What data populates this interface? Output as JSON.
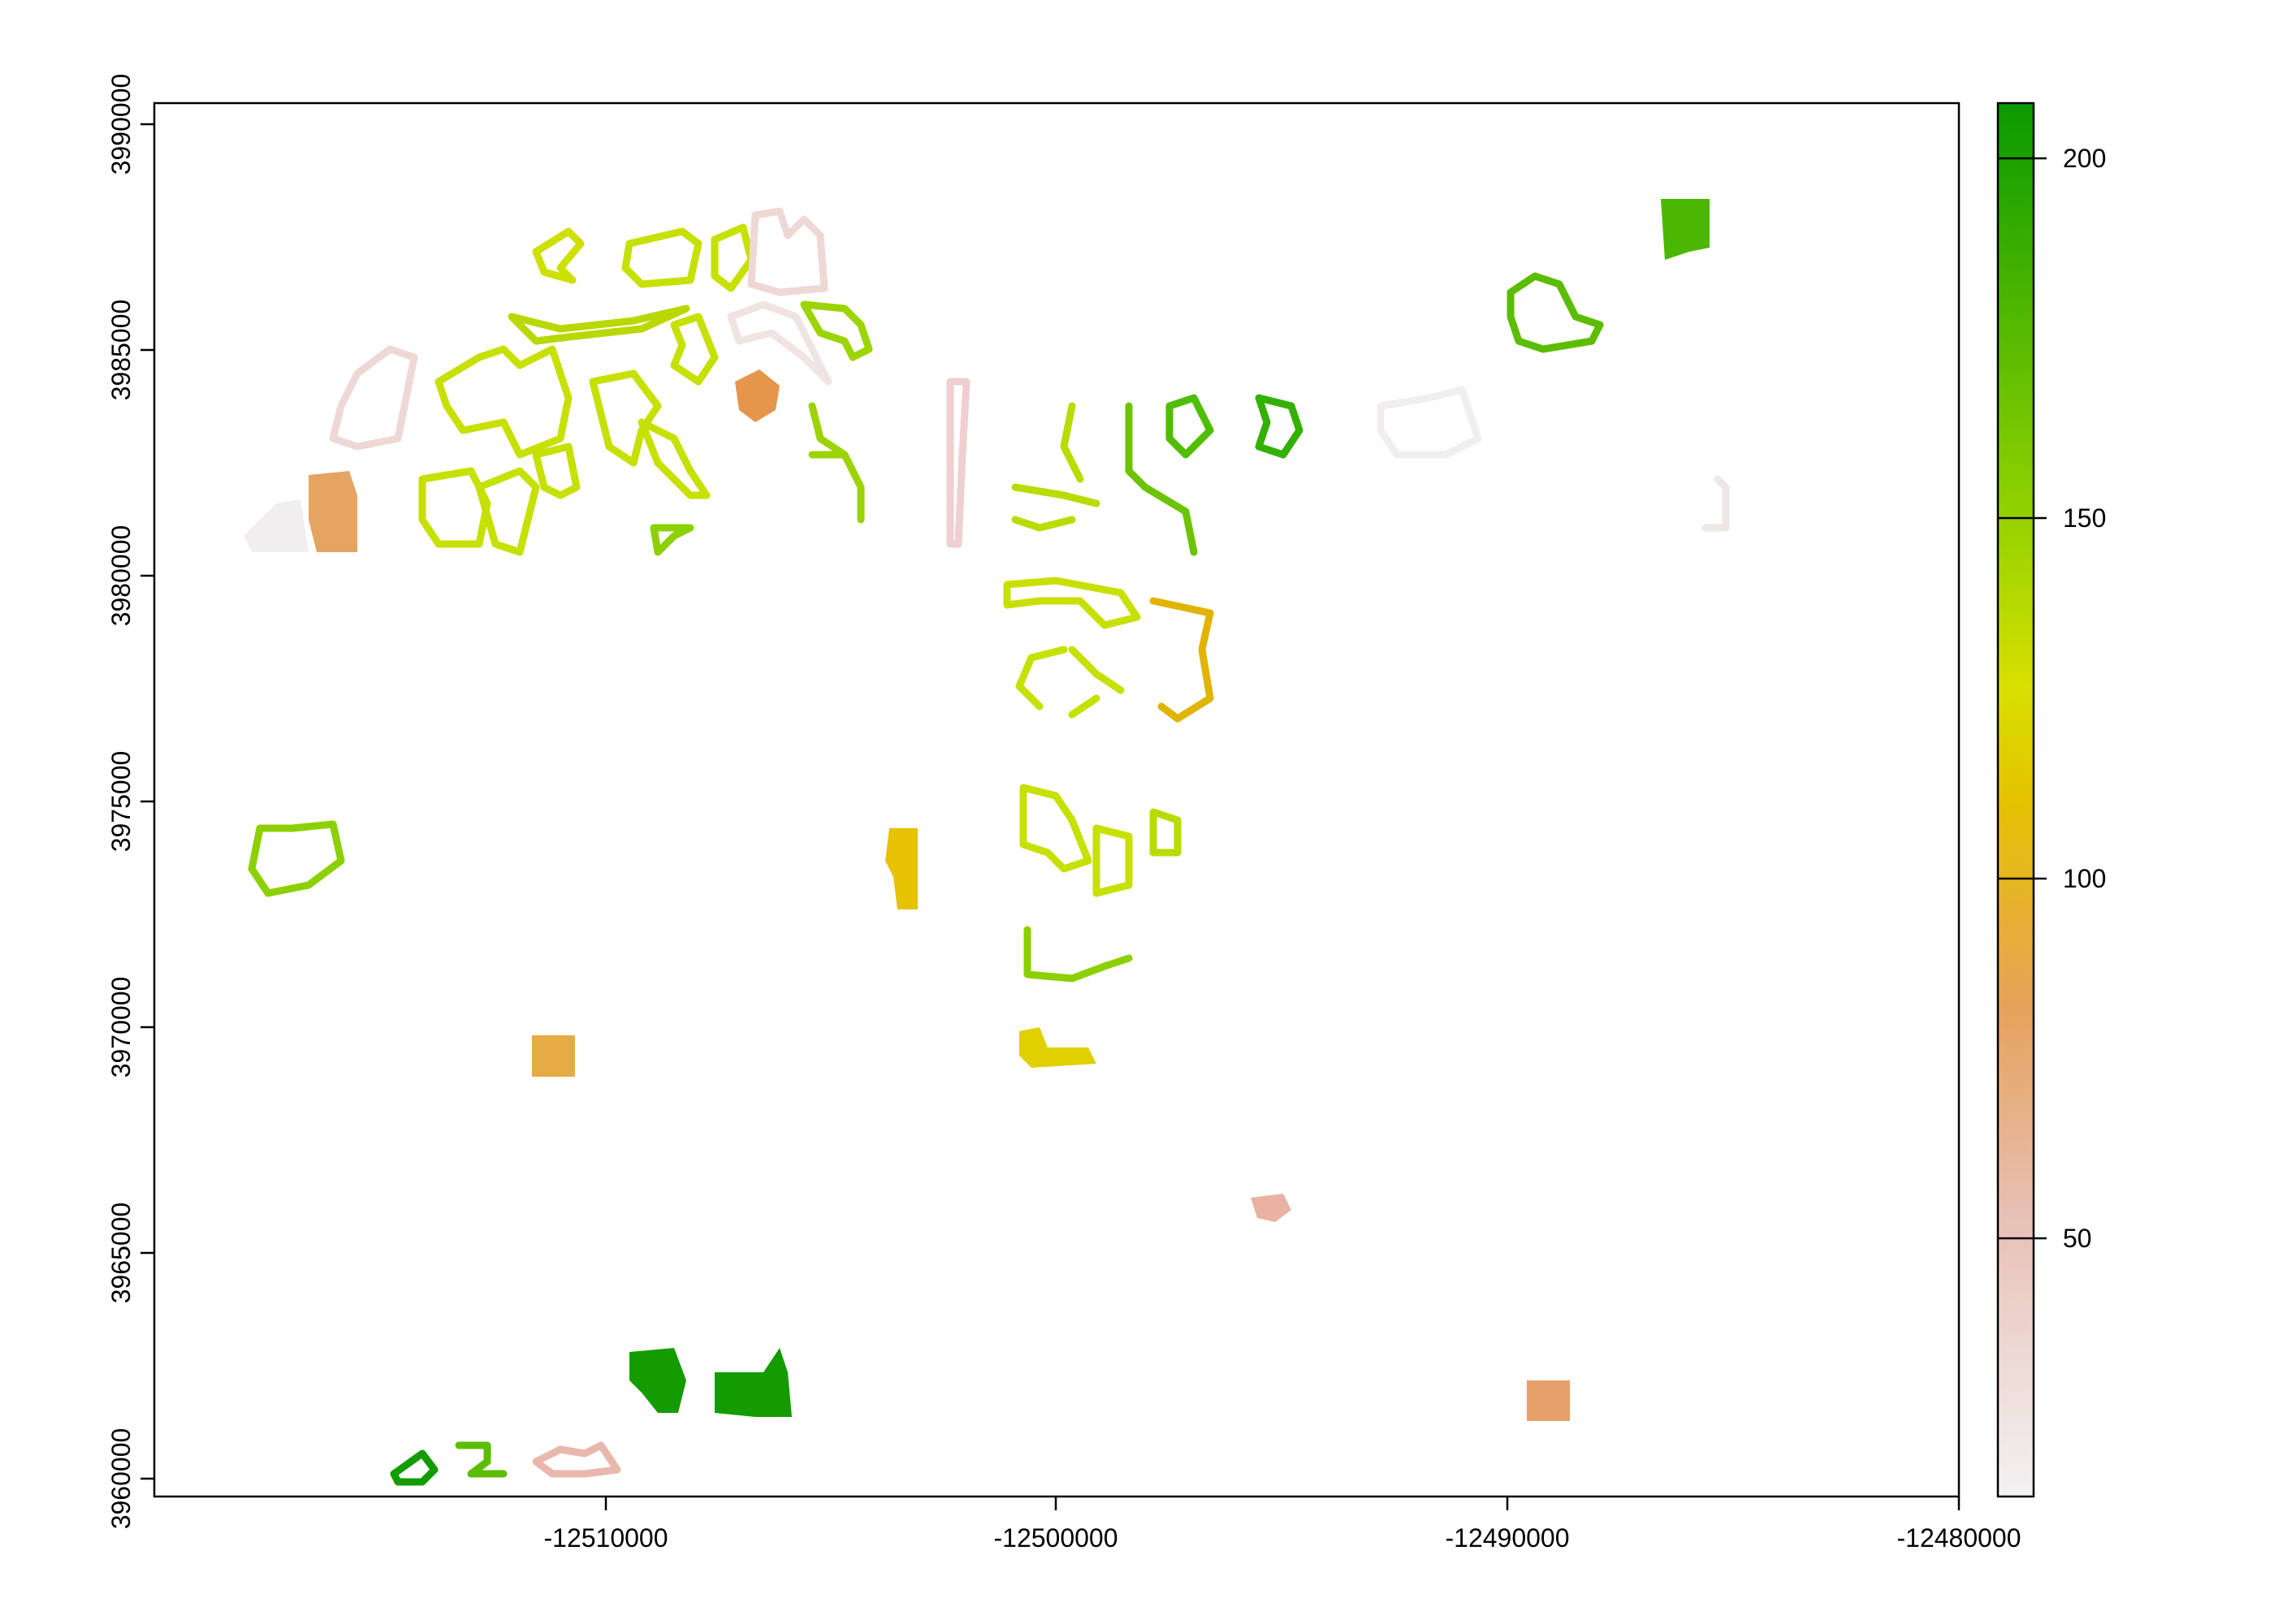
{
  "map": {
    "x_ticks": [
      "-12510000",
      "-12500000",
      "-12490000",
      "-12480000"
    ],
    "y_ticks": [
      "3960000",
      "3965000",
      "3970000",
      "3975000",
      "3980000",
      "3985000",
      "3990000"
    ],
    "legend_ticks": [
      "50",
      "100",
      "150",
      "200"
    ],
    "color_ramp": [
      "#f2f2f2",
      "#ecb176",
      "#e6d100",
      "#8bd000",
      "#00a600"
    ]
  }
}
